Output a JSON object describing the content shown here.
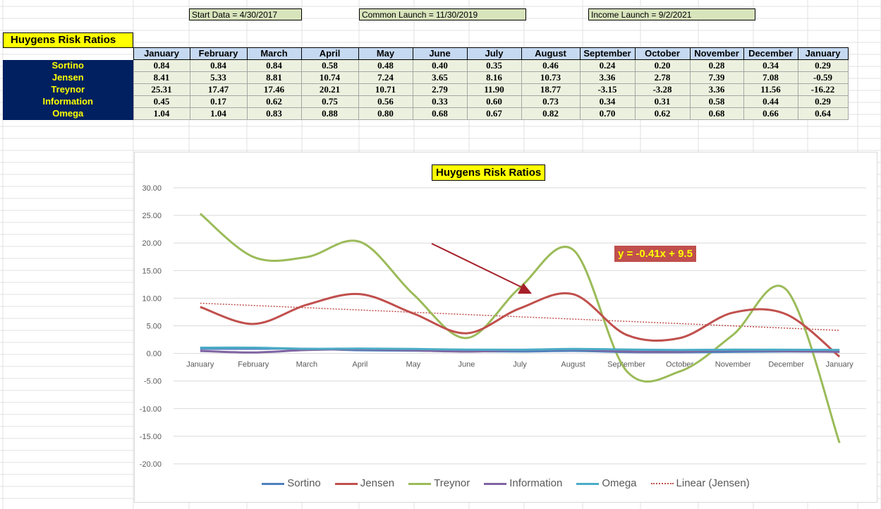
{
  "header_boxes": {
    "start": "Start Data = 4/30/2017",
    "common": "Common Launch = 11/30/2019",
    "income": "Income Launch = 9/2/2021"
  },
  "table": {
    "title": "Huygens Risk Ratios",
    "columns": [
      "January",
      "February",
      "March",
      "April",
      "May",
      "June",
      "July",
      "August",
      "September",
      "October",
      "November",
      "December",
      "January"
    ],
    "rows": [
      {
        "label": "Sortino",
        "values": [
          "0.84",
          "0.84",
          "0.84",
          "0.58",
          "0.48",
          "0.40",
          "0.35",
          "0.46",
          "0.24",
          "0.20",
          "0.28",
          "0.34",
          "0.29"
        ]
      },
      {
        "label": "Jensen",
        "values": [
          "8.41",
          "5.33",
          "8.81",
          "10.74",
          "7.24",
          "3.65",
          "8.16",
          "10.73",
          "3.36",
          "2.78",
          "7.39",
          "7.08",
          "-0.59"
        ]
      },
      {
        "label": "Treynor",
        "values": [
          "25.31",
          "17.47",
          "17.46",
          "20.21",
          "10.71",
          "2.79",
          "11.90",
          "18.77",
          "-3.15",
          "-3.28",
          "3.36",
          "11.56",
          "-16.22"
        ]
      },
      {
        "label": "Information",
        "values": [
          "0.45",
          "0.17",
          "0.62",
          "0.75",
          "0.56",
          "0.33",
          "0.60",
          "0.73",
          "0.34",
          "0.31",
          "0.58",
          "0.44",
          "0.29"
        ]
      },
      {
        "label": "Omega",
        "values": [
          "1.04",
          "1.04",
          "0.83",
          "0.88",
          "0.80",
          "0.68",
          "0.67",
          "0.82",
          "0.70",
          "0.62",
          "0.68",
          "0.66",
          "0.64"
        ]
      }
    ]
  },
  "chart_data": {
    "type": "line",
    "title": "Huygens Risk Ratios",
    "categories": [
      "January",
      "February",
      "March",
      "April",
      "May",
      "June",
      "July",
      "August",
      "September",
      "October",
      "November",
      "December",
      "January"
    ],
    "ylim": [
      -20,
      30
    ],
    "yticks": [
      "30.00",
      "25.00",
      "20.00",
      "15.00",
      "10.00",
      "5.00",
      "0.00",
      "-5.00",
      "-10.00",
      "-15.00",
      "-20.00"
    ],
    "series": [
      {
        "name": "Sortino",
        "color": "#4f81bd",
        "values": [
          0.84,
          0.84,
          0.84,
          0.58,
          0.48,
          0.4,
          0.35,
          0.46,
          0.24,
          0.2,
          0.28,
          0.34,
          0.29
        ]
      },
      {
        "name": "Jensen",
        "color": "#c0504d",
        "values": [
          8.41,
          5.33,
          8.81,
          10.74,
          7.24,
          3.65,
          8.16,
          10.73,
          3.36,
          2.78,
          7.39,
          7.08,
          -0.59
        ]
      },
      {
        "name": "Treynor",
        "color": "#9bbb59",
        "values": [
          25.31,
          17.47,
          17.46,
          20.21,
          10.71,
          2.79,
          11.9,
          18.77,
          -3.15,
          -3.28,
          3.36,
          11.56,
          -16.22
        ]
      },
      {
        "name": "Information",
        "color": "#8064a2",
        "values": [
          0.45,
          0.17,
          0.62,
          0.75,
          0.56,
          0.33,
          0.6,
          0.73,
          0.34,
          0.31,
          0.58,
          0.44,
          0.29
        ]
      },
      {
        "name": "Omega",
        "color": "#4bacc6",
        "values": [
          1.04,
          1.04,
          0.83,
          0.88,
          0.8,
          0.68,
          0.67,
          0.82,
          0.7,
          0.62,
          0.68,
          0.66,
          0.64
        ]
      }
    ],
    "trendline": {
      "name": "Linear (Jensen)",
      "color": "#c0504d",
      "slope": -0.41,
      "intercept": 9.5,
      "equation": "y = -0.41x + 9.5"
    },
    "grid": true,
    "legend_position": "bottom"
  }
}
